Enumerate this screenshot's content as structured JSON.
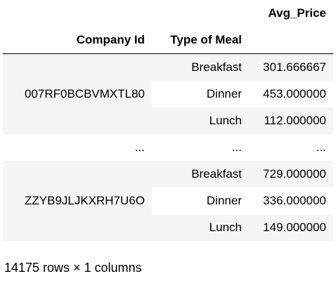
{
  "table": {
    "value_column": "Avg_Price",
    "index_names": [
      "Company Id",
      "Type of Meal"
    ],
    "groups": [
      {
        "company_id": "007RF0BCBVMXTL80",
        "rows": [
          {
            "meal": "Breakfast",
            "avg_price": "301.666667"
          },
          {
            "meal": "Dinner",
            "avg_price": "453.000000"
          },
          {
            "meal": "Lunch",
            "avg_price": "112.000000"
          }
        ]
      },
      {
        "company_id": "ZZYB9JLJKXRH7U6O",
        "rows": [
          {
            "meal": "Breakfast",
            "avg_price": "729.000000"
          },
          {
            "meal": "Dinner",
            "avg_price": "336.000000"
          },
          {
            "meal": "Lunch",
            "avg_price": "149.000000"
          }
        ]
      }
    ],
    "ellipsis": "..."
  },
  "footer": "14175 rows × 1 columns"
}
